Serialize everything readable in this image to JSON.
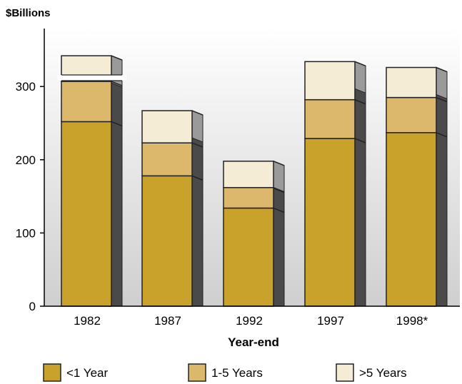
{
  "chart_data": {
    "type": "bar",
    "stacked": true,
    "style": "3d",
    "ylabel": "$Billions",
    "xlabel": "Year-end",
    "categories": [
      "1982",
      "1987",
      "1992",
      "1997",
      "1998*"
    ],
    "ylim": [
      0,
      370
    ],
    "yticks": [
      0,
      100,
      200,
      300
    ],
    "axis_break_on_category": "1982",
    "grid": false,
    "legend_position": "bottom",
    "series": [
      {
        "name": "<1 Year",
        "values": [
          252,
          178,
          134,
          229,
          237
        ],
        "color": "#C9A22C"
      },
      {
        "name": "1-5 Years",
        "values": [
          55,
          45,
          28,
          53,
          48
        ],
        "color": "#DBB86B"
      },
      {
        "name": ">5 Years",
        "values": [
          35,
          44,
          36,
          52,
          41
        ],
        "color": "#F5ECD6"
      }
    ],
    "plot_background_top": "#ffffff",
    "plot_background_bottom": "#cfcfcf"
  }
}
